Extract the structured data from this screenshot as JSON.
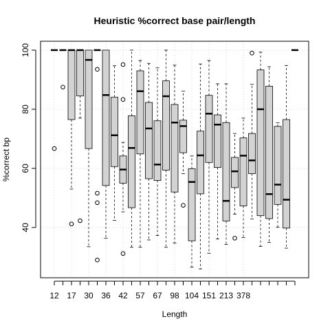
{
  "chart_data": {
    "type": "boxplot",
    "title": "Heuristic %correct base pair/length",
    "xlabel": "Length",
    "ylabel": "%correct bp",
    "ylim": [
      23,
      103
    ],
    "yticks": [
      40,
      60,
      80,
      100
    ],
    "grid": true,
    "x_tick_labels": [
      "12",
      "17",
      "30",
      "36",
      "42",
      "57",
      "67",
      "98",
      "104",
      "151",
      "213",
      "378"
    ],
    "boxes": [
      {
        "min": 100,
        "q1": 100,
        "median": 100,
        "q3": 100,
        "max": 100,
        "outliers": [
          66.7
        ]
      },
      {
        "min": 100,
        "q1": 100,
        "median": 100,
        "q3": 100,
        "max": 100,
        "outliers": [
          87.5
        ]
      },
      {
        "min": 53,
        "q1": 76.5,
        "median": 100,
        "q3": 100,
        "max": 100,
        "outliers": [
          41.2
        ]
      },
      {
        "min": 77,
        "q1": 84.5,
        "median": 100,
        "q3": 100,
        "max": 100,
        "outliers": [
          42.3
        ]
      },
      {
        "min": 33.5,
        "q1": 66.7,
        "median": 96.7,
        "q3": 100,
        "max": 100,
        "outliers": []
      },
      {
        "min": 100,
        "q1": 100,
        "median": 100,
        "q3": 100,
        "max": 100,
        "outliers": [
          93.5,
          51.6,
          48.4,
          29
        ]
      },
      {
        "min": 36.4,
        "q1": 54.2,
        "median": 84.8,
        "q3": 100,
        "max": 100,
        "outliers": []
      },
      {
        "min": 42.4,
        "q1": 60.6,
        "median": 71.2,
        "q3": 84.1,
        "max": 94.7,
        "outliers": []
      },
      {
        "min": 45.3,
        "q1": 55,
        "median": 59.6,
        "q3": 64.2,
        "max": 68.8,
        "outliers": [
          95.1,
          83.3,
          31.2
        ]
      },
      {
        "min": 33.3,
        "q1": 46.7,
        "median": 66.9,
        "q3": 77.8,
        "max": 100,
        "outliers": []
      },
      {
        "min": 33.3,
        "q1": 64.9,
        "median": 86.1,
        "q3": 93,
        "max": 96.5,
        "outliers": []
      },
      {
        "min": 35.8,
        "q1": 56.5,
        "median": 73.5,
        "q3": 82.3,
        "max": 95.5,
        "outliers": []
      },
      {
        "min": 37.3,
        "q1": 55.9,
        "median": 61.3,
        "q3": 76.1,
        "max": 94,
        "outliers": []
      },
      {
        "min": 33.3,
        "q1": 59.4,
        "median": 84.4,
        "q3": 89.6,
        "max": 100,
        "outliers": []
      },
      {
        "min": 34.7,
        "q1": 52,
        "median": 75.5,
        "q3": 81.6,
        "max": 94.9,
        "outliers": []
      },
      {
        "min": 58.2,
        "q1": 65.3,
        "median": 74.3,
        "q3": 76.3,
        "max": 86.1,
        "outliers": [
          47.5
        ]
      },
      {
        "min": 26.6,
        "q1": 35.5,
        "median": 55.4,
        "q3": 59.9,
        "max": 64.2,
        "outliers": []
      },
      {
        "min": 26,
        "q1": 51.4,
        "median": 64.4,
        "q3": 72.6,
        "max": 95.3,
        "outliers": []
      },
      {
        "min": 31.3,
        "q1": 62,
        "median": 78.5,
        "q3": 84.7,
        "max": 96.5,
        "outliers": []
      },
      {
        "min": 36.1,
        "q1": 60.3,
        "median": 74.8,
        "q3": 78.1,
        "max": 88.6,
        "outliers": []
      },
      {
        "min": 34.3,
        "q1": 42.2,
        "median": 49,
        "q3": 75.5,
        "max": 88.6,
        "outliers": []
      },
      {
        "min": 44.5,
        "q1": 53.5,
        "median": 59,
        "q3": 63.7,
        "max": 71.8,
        "outliers": [
          36.4
        ]
      },
      {
        "min": 36.6,
        "q1": 47.3,
        "median": 64.3,
        "q3": 70.3,
        "max": 77,
        "outliers": []
      },
      {
        "min": 42.9,
        "q1": 58.2,
        "median": 62.7,
        "q3": 71.8,
        "max": 88.4,
        "outliers": [
          99
        ]
      },
      {
        "min": 33.6,
        "q1": 44,
        "median": 80,
        "q3": 93.3,
        "max": 99.3,
        "outliers": []
      },
      {
        "min": 35,
        "q1": 43,
        "median": 51.3,
        "q3": 87.8,
        "max": 94.4,
        "outliers": []
      },
      {
        "min": 40.1,
        "q1": 47.8,
        "median": 54.5,
        "q3": 74.2,
        "max": 75.4,
        "outliers": []
      },
      {
        "min": 33,
        "q1": 39.8,
        "median": 49.4,
        "q3": 76.5,
        "max": 94.8,
        "outliers": []
      },
      {
        "min": 100,
        "q1": 100,
        "median": 100,
        "q3": 100,
        "max": 100,
        "outliers": []
      }
    ]
  }
}
